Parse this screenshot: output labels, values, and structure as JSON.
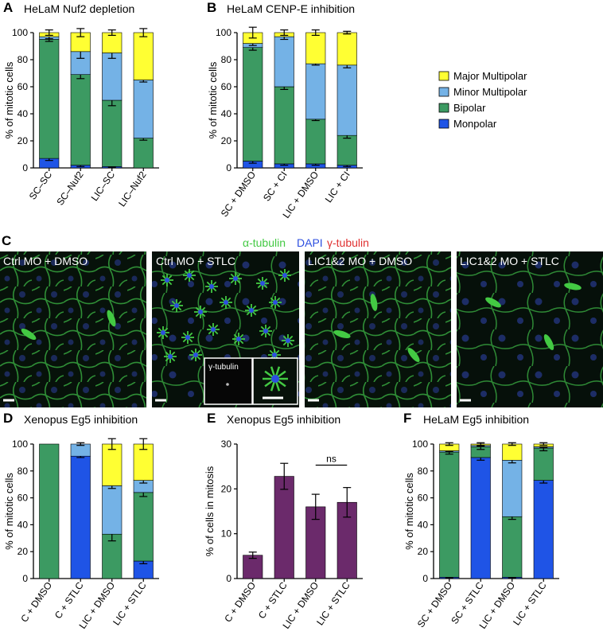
{
  "colors": {
    "major_multipolar": "#ffff33",
    "minor_multipolar": "#74b2e6",
    "bipolar": "#3c9a62",
    "monopolar": "#1f54e6",
    "purple": "#6b2a6b",
    "tubulin_green": "#43c943",
    "dapi_blue": "#2d4fe0",
    "gamma_red": "#e03030"
  },
  "legend": {
    "items": [
      {
        "label": "Major Multipolar",
        "color": "#ffff33"
      },
      {
        "label": "Minor Multipolar",
        "color": "#74b2e6"
      },
      {
        "label": "Bipolar",
        "color": "#3c9a62"
      },
      {
        "label": "Monpolar",
        "color": "#1f54e6"
      }
    ]
  },
  "panel_c": {
    "label": "C",
    "stain_labels": [
      {
        "text": "α-tubulin",
        "color": "#43c943"
      },
      {
        "text": "DAPI",
        "color": "#2d4fe0"
      },
      {
        "text": "γ-tubulin",
        "color": "#e03030"
      }
    ],
    "images": [
      {
        "label": "Ctrl MO + DMSO"
      },
      {
        "label": "Ctrl MO + STLC"
      },
      {
        "label": "LIC1&2 MO + DMSO"
      },
      {
        "label": "LIC1&2 MO + STLC"
      }
    ],
    "inset_label": "γ-tubulin"
  },
  "chart_data": [
    {
      "id": "A",
      "panel_label": "A",
      "type": "bar",
      "stacked": true,
      "title": "HeLaM Nuf2 depletion",
      "ylabel": "% of mitotic cells",
      "ylim": [
        0,
        100
      ],
      "yticks": [
        0,
        20,
        40,
        60,
        80,
        100
      ],
      "categories": [
        "SC–SC",
        "SC–Nuf2",
        "LIC–SC",
        "LIC–Nuf2"
      ],
      "series": [
        {
          "name": "Monpolar",
          "values": [
            7,
            2,
            1,
            0
          ],
          "errors": [
            1.5,
            1,
            0.5,
            0
          ]
        },
        {
          "name": "Bipolar",
          "values": [
            88,
            67,
            49,
            22
          ],
          "errors": [
            1.5,
            3,
            4,
            1.5
          ]
        },
        {
          "name": "Minor Multipolar",
          "values": [
            2,
            17,
            35,
            43
          ],
          "errors": [
            1.5,
            5,
            4,
            1.5
          ]
        },
        {
          "name": "Major Multipolar",
          "values": [
            3,
            14,
            15,
            35
          ],
          "errors": [
            2,
            3,
            2,
            3
          ]
        }
      ]
    },
    {
      "id": "B",
      "panel_label": "B",
      "type": "bar",
      "stacked": true,
      "title": "HeLaM CENP-E inhibition",
      "ylabel": "% of mitotic cells",
      "ylim": [
        0,
        100
      ],
      "yticks": [
        0,
        20,
        40,
        60,
        80,
        100
      ],
      "categories": [
        "SC + DMSO",
        "SC + CI",
        "LIC + DMSO",
        "LIC + CI"
      ],
      "series": [
        {
          "name": "Monpolar",
          "values": [
            5,
            3,
            3,
            2
          ],
          "errors": [
            1.5,
            1,
            1,
            1
          ]
        },
        {
          "name": "Bipolar",
          "values": [
            84,
            57,
            33,
            22
          ],
          "errors": [
            2,
            2,
            1,
            2
          ]
        },
        {
          "name": "Minor Multipolar",
          "values": [
            3,
            37,
            41,
            52
          ],
          "errors": [
            1.5,
            2,
            1,
            2
          ]
        },
        {
          "name": "Major Multipolar",
          "values": [
            8,
            3,
            23,
            24
          ],
          "errors": [
            4,
            2,
            2,
            1
          ]
        }
      ]
    },
    {
      "id": "D",
      "panel_label": "D",
      "type": "bar",
      "stacked": true,
      "title": "Xenopus Eg5 inhibition",
      "ylabel": "% of mitotic cells",
      "ylim": [
        0,
        100
      ],
      "yticks": [
        0,
        20,
        40,
        60,
        80,
        100
      ],
      "categories": [
        "C + DMSO",
        "C + STLC",
        "LIC + DMSO",
        "LIC + STLC"
      ],
      "series": [
        {
          "name": "Monpolar",
          "values": [
            0,
            91,
            0,
            13
          ],
          "errors": [
            0,
            1,
            0,
            2
          ]
        },
        {
          "name": "Bipolar",
          "values": [
            100,
            0,
            33,
            51
          ],
          "errors": [
            0,
            0,
            5,
            3
          ]
        },
        {
          "name": "Minor Multipolar",
          "values": [
            0,
            9,
            36,
            9
          ],
          "errors": [
            0,
            1,
            2,
            2
          ]
        },
        {
          "name": "Major Multipolar",
          "values": [
            0,
            0,
            31,
            27
          ],
          "errors": [
            0,
            0,
            4,
            4
          ]
        }
      ]
    },
    {
      "id": "E",
      "panel_label": "E",
      "type": "bar",
      "stacked": false,
      "title": "Xenopus Eg5 inhibition",
      "ylabel": "% of cells in mitosis",
      "ylim": [
        0,
        30
      ],
      "yticks": [
        0,
        10,
        20,
        30
      ],
      "categories": [
        "C + DMSO",
        "C + STLC",
        "LIC + DMSO",
        "LIC + STLC"
      ],
      "values": [
        5.2,
        22.8,
        16.0,
        17.0
      ],
      "errors": [
        0.7,
        2.9,
        2.8,
        3.3
      ],
      "annotation": {
        "text": "ns",
        "between": [
          2,
          3
        ],
        "y": 25.3
      }
    },
    {
      "id": "F",
      "panel_label": "F",
      "type": "bar",
      "stacked": true,
      "title": "HeLaM Eg5 inhibition",
      "ylabel": "% of mitotic cells",
      "ylim": [
        0,
        100
      ],
      "yticks": [
        0,
        20,
        40,
        60,
        80,
        100
      ],
      "categories": [
        "SC + DMSO",
        "SC + STLC",
        "LIC + DMSO",
        "LIC + STLC"
      ],
      "series": [
        {
          "name": "Monpolar",
          "values": [
            1,
            90,
            1,
            73
          ],
          "errors": [
            0.5,
            2,
            0.5,
            2
          ]
        },
        {
          "name": "Bipolar",
          "values": [
            93,
            8,
            45,
            24
          ],
          "errors": [
            1.5,
            2,
            2,
            2
          ]
        },
        {
          "name": "Minor Multipolar",
          "values": [
            1,
            1,
            42,
            1
          ],
          "errors": [
            0.5,
            0.5,
            2,
            0.5
          ]
        },
        {
          "name": "Major Multipolar",
          "values": [
            5,
            1,
            12,
            2
          ],
          "errors": [
            1,
            1,
            1,
            1
          ]
        }
      ]
    }
  ]
}
